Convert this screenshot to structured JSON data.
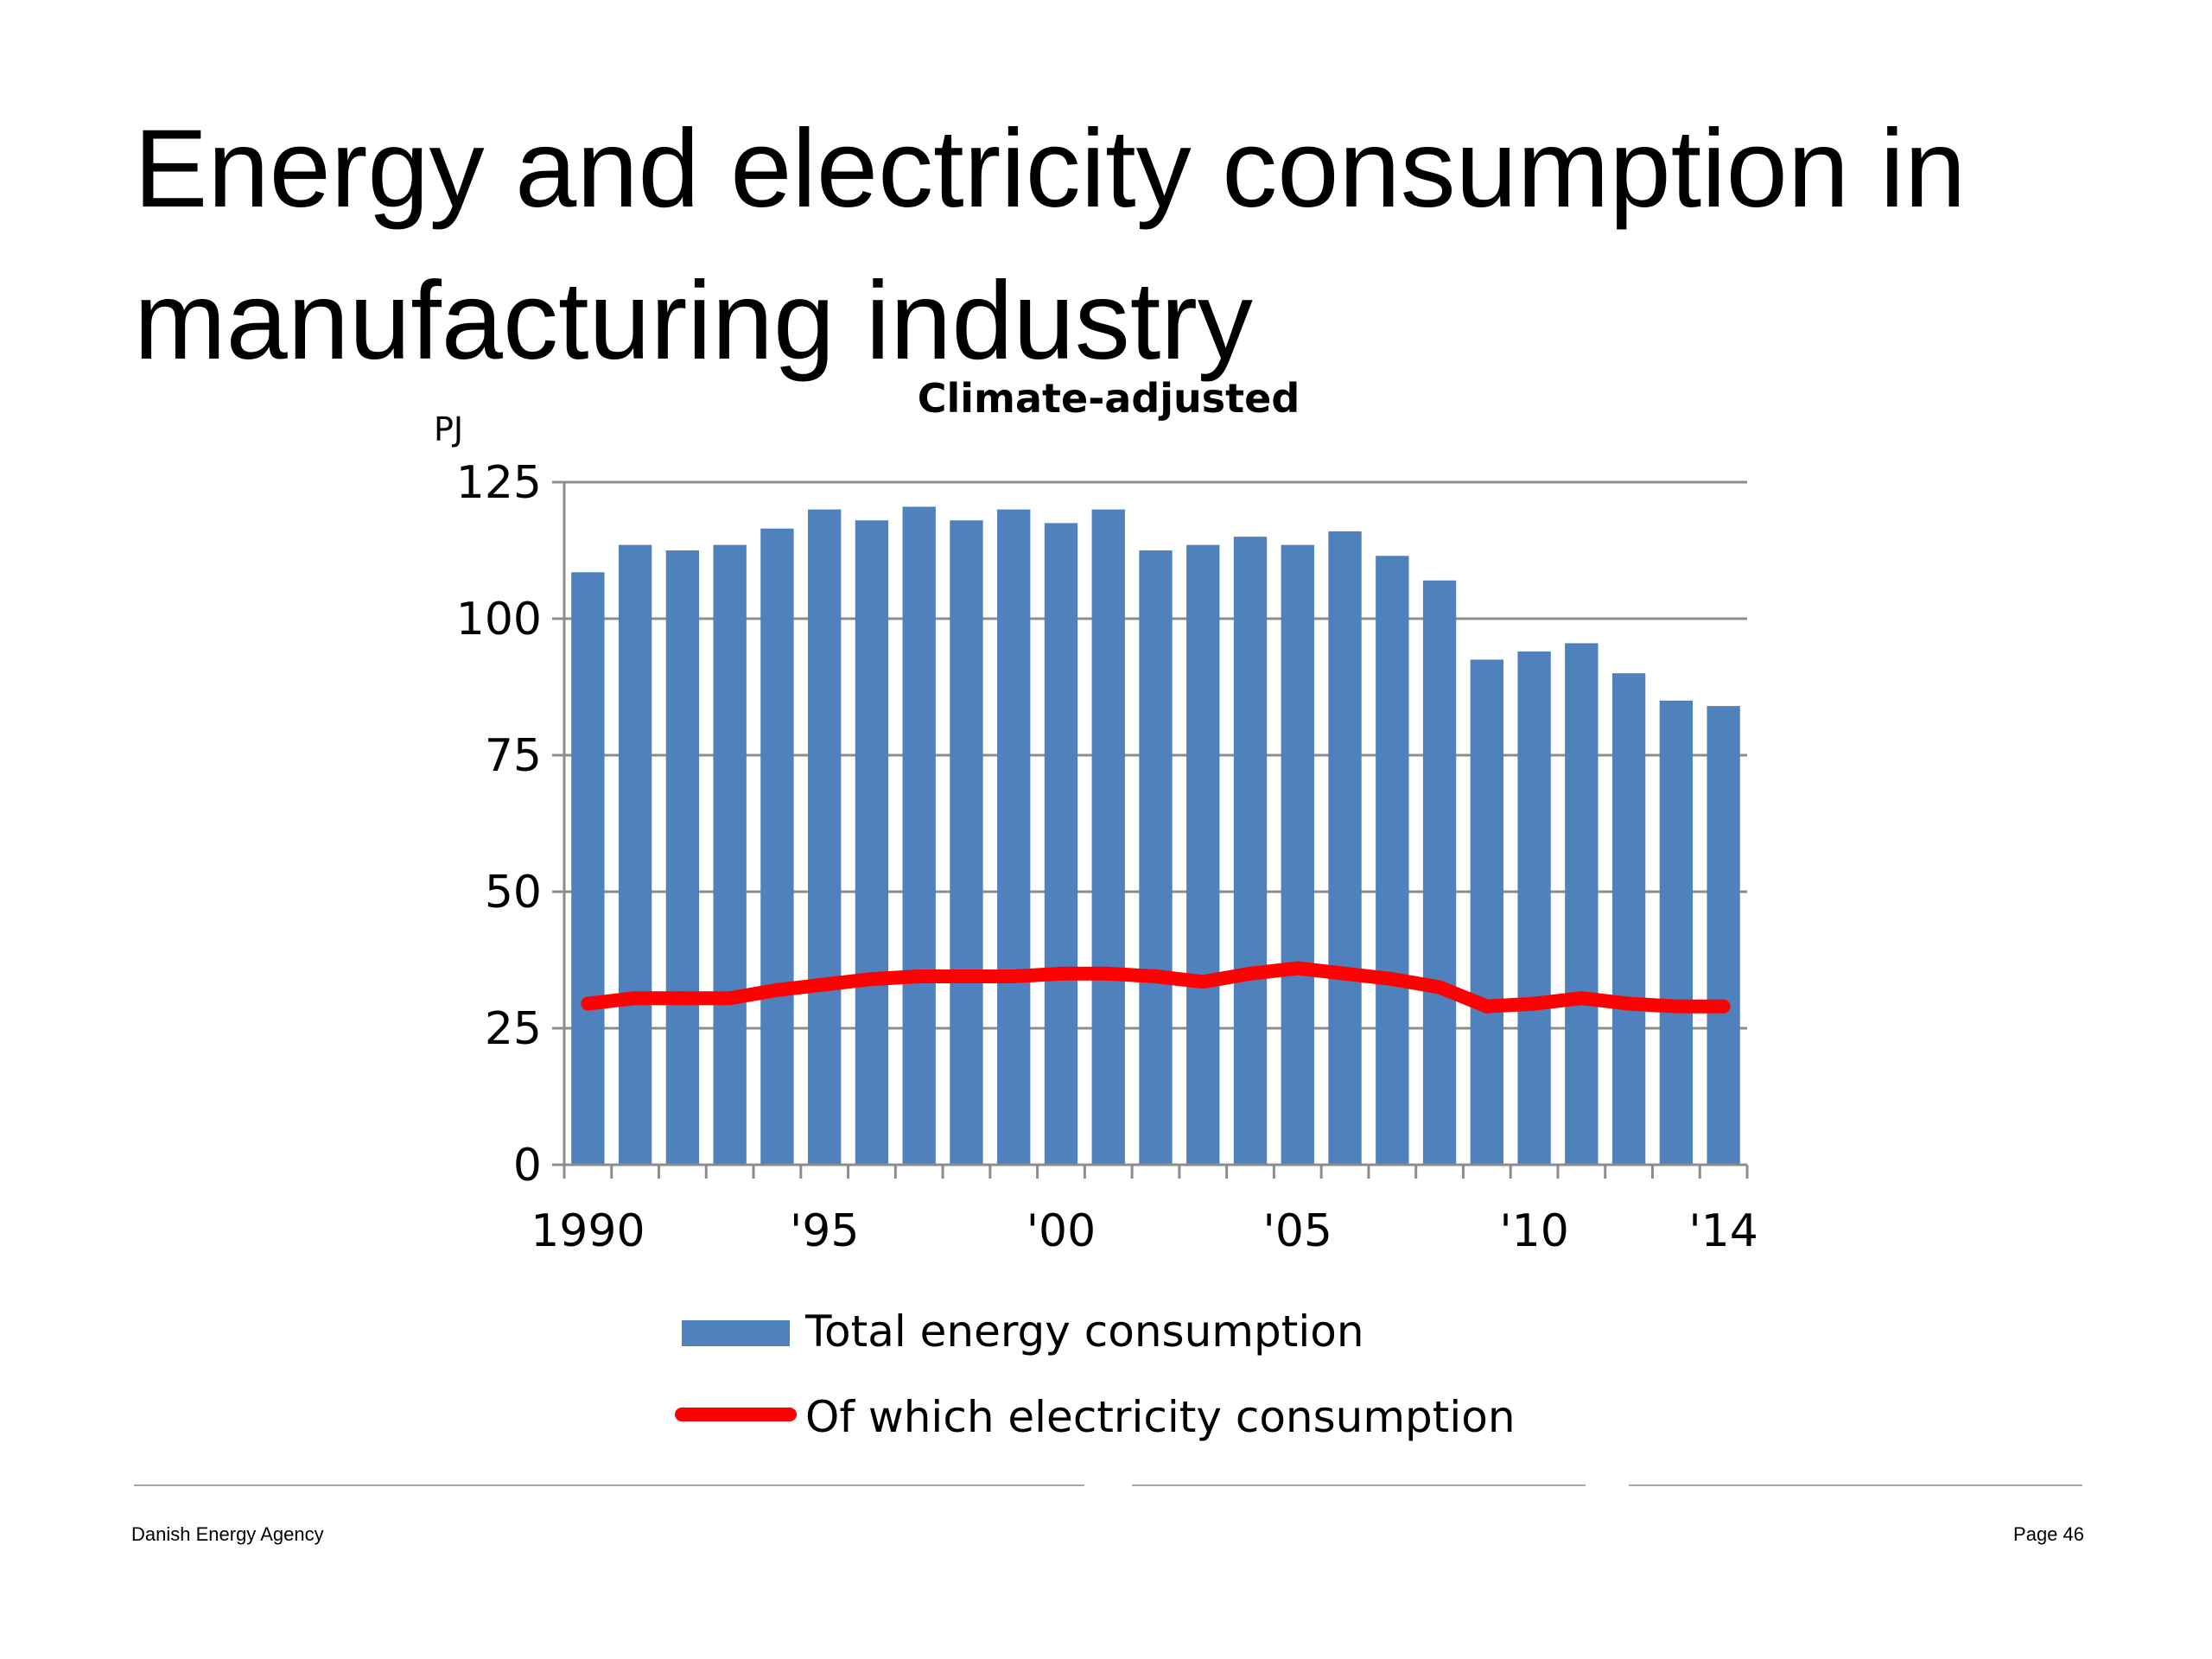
{
  "slide": {
    "title": "Energy and electricity consumption in manufacturing industry"
  },
  "footer": {
    "organization": "Danish Energy Agency",
    "page_label": "Page 46"
  },
  "chart_data": {
    "type": "bar",
    "title": "Climate-adjusted",
    "ylabel": "PJ",
    "xlabel": "",
    "ylim": [
      0,
      125
    ],
    "yticks": [
      0,
      25,
      50,
      75,
      100,
      125
    ],
    "grid": true,
    "legend_position": "bottom",
    "x": [
      1990,
      1991,
      1992,
      1993,
      1994,
      1995,
      1996,
      1997,
      1998,
      1999,
      2000,
      2001,
      2002,
      2003,
      2004,
      2005,
      2006,
      2007,
      2008,
      2009,
      2010,
      2011,
      2012,
      2013,
      2014
    ],
    "x_tick_labels": [
      {
        "x": 1990,
        "label": "1990"
      },
      {
        "x": 1995,
        "label": "'95"
      },
      {
        "x": 2000,
        "label": "'00"
      },
      {
        "x": 2005,
        "label": "'05"
      },
      {
        "x": 2010,
        "label": "'10"
      },
      {
        "x": 2014,
        "label": "'14"
      }
    ],
    "series": [
      {
        "name": "Total energy consumption",
        "type": "bar",
        "color": "#4f81bd",
        "values": [
          108.5,
          113.5,
          112.5,
          113.5,
          116.5,
          120,
          118,
          120.5,
          118,
          120,
          117.5,
          120,
          112.5,
          113.5,
          115,
          113.5,
          116,
          111.5,
          107,
          92.5,
          94,
          95.5,
          90,
          85,
          84
        ]
      },
      {
        "name": "Of which electricity consumption",
        "type": "line",
        "color": "#ff0000",
        "values": [
          29.5,
          30.5,
          30.5,
          30.5,
          32,
          33,
          34,
          34.5,
          34.5,
          34.5,
          35,
          35,
          34.5,
          33.5,
          35,
          36,
          35,
          34,
          32.5,
          29,
          29.5,
          30.5,
          29.5,
          29,
          29
        ]
      }
    ]
  }
}
